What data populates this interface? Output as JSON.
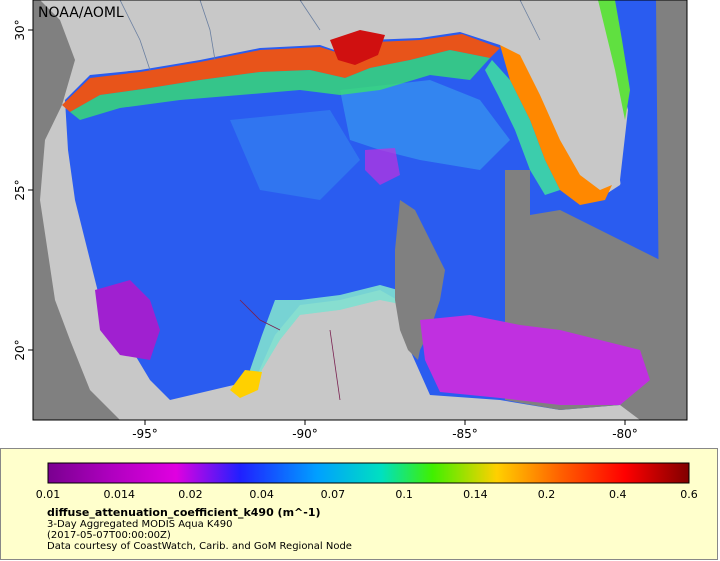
{
  "map": {
    "credit": "NOAA/AOML",
    "lat_ticks": [
      "30°",
      "25°",
      "20°"
    ],
    "lon_ticks": [
      "-95°",
      "-90°",
      "-85°",
      "-80°"
    ],
    "colors": {
      "land": "#c8c8c8",
      "no_data": "#808080",
      "shelf": "#e8541a",
      "open_water": "#2a5cf0",
      "low": "#a020d0",
      "mid": "#3aa8f0"
    }
  },
  "legend": {
    "tick_labels": [
      "0.01",
      "0.014",
      "0.02",
      "0.04",
      "0.07",
      "0.1",
      "0.14",
      "0.2",
      "0.4",
      "0.6"
    ],
    "colors": [
      "#7a0090",
      "#e000e0",
      "#2020ff",
      "#00a0ff",
      "#00e0c0",
      "#40f000",
      "#ffd000",
      "#ff6000",
      "#ff0000",
      "#800000"
    ],
    "variable": "diffuse_attenuation_coefficient_k490 (m^-1)",
    "product": "3-Day Aggregated MODIS Aqua K490",
    "time": "(2017-05-07T00:00:00Z)",
    "courtesy": "Data courtesy of CoastWatch, Carib. and GoM Regional Node"
  }
}
